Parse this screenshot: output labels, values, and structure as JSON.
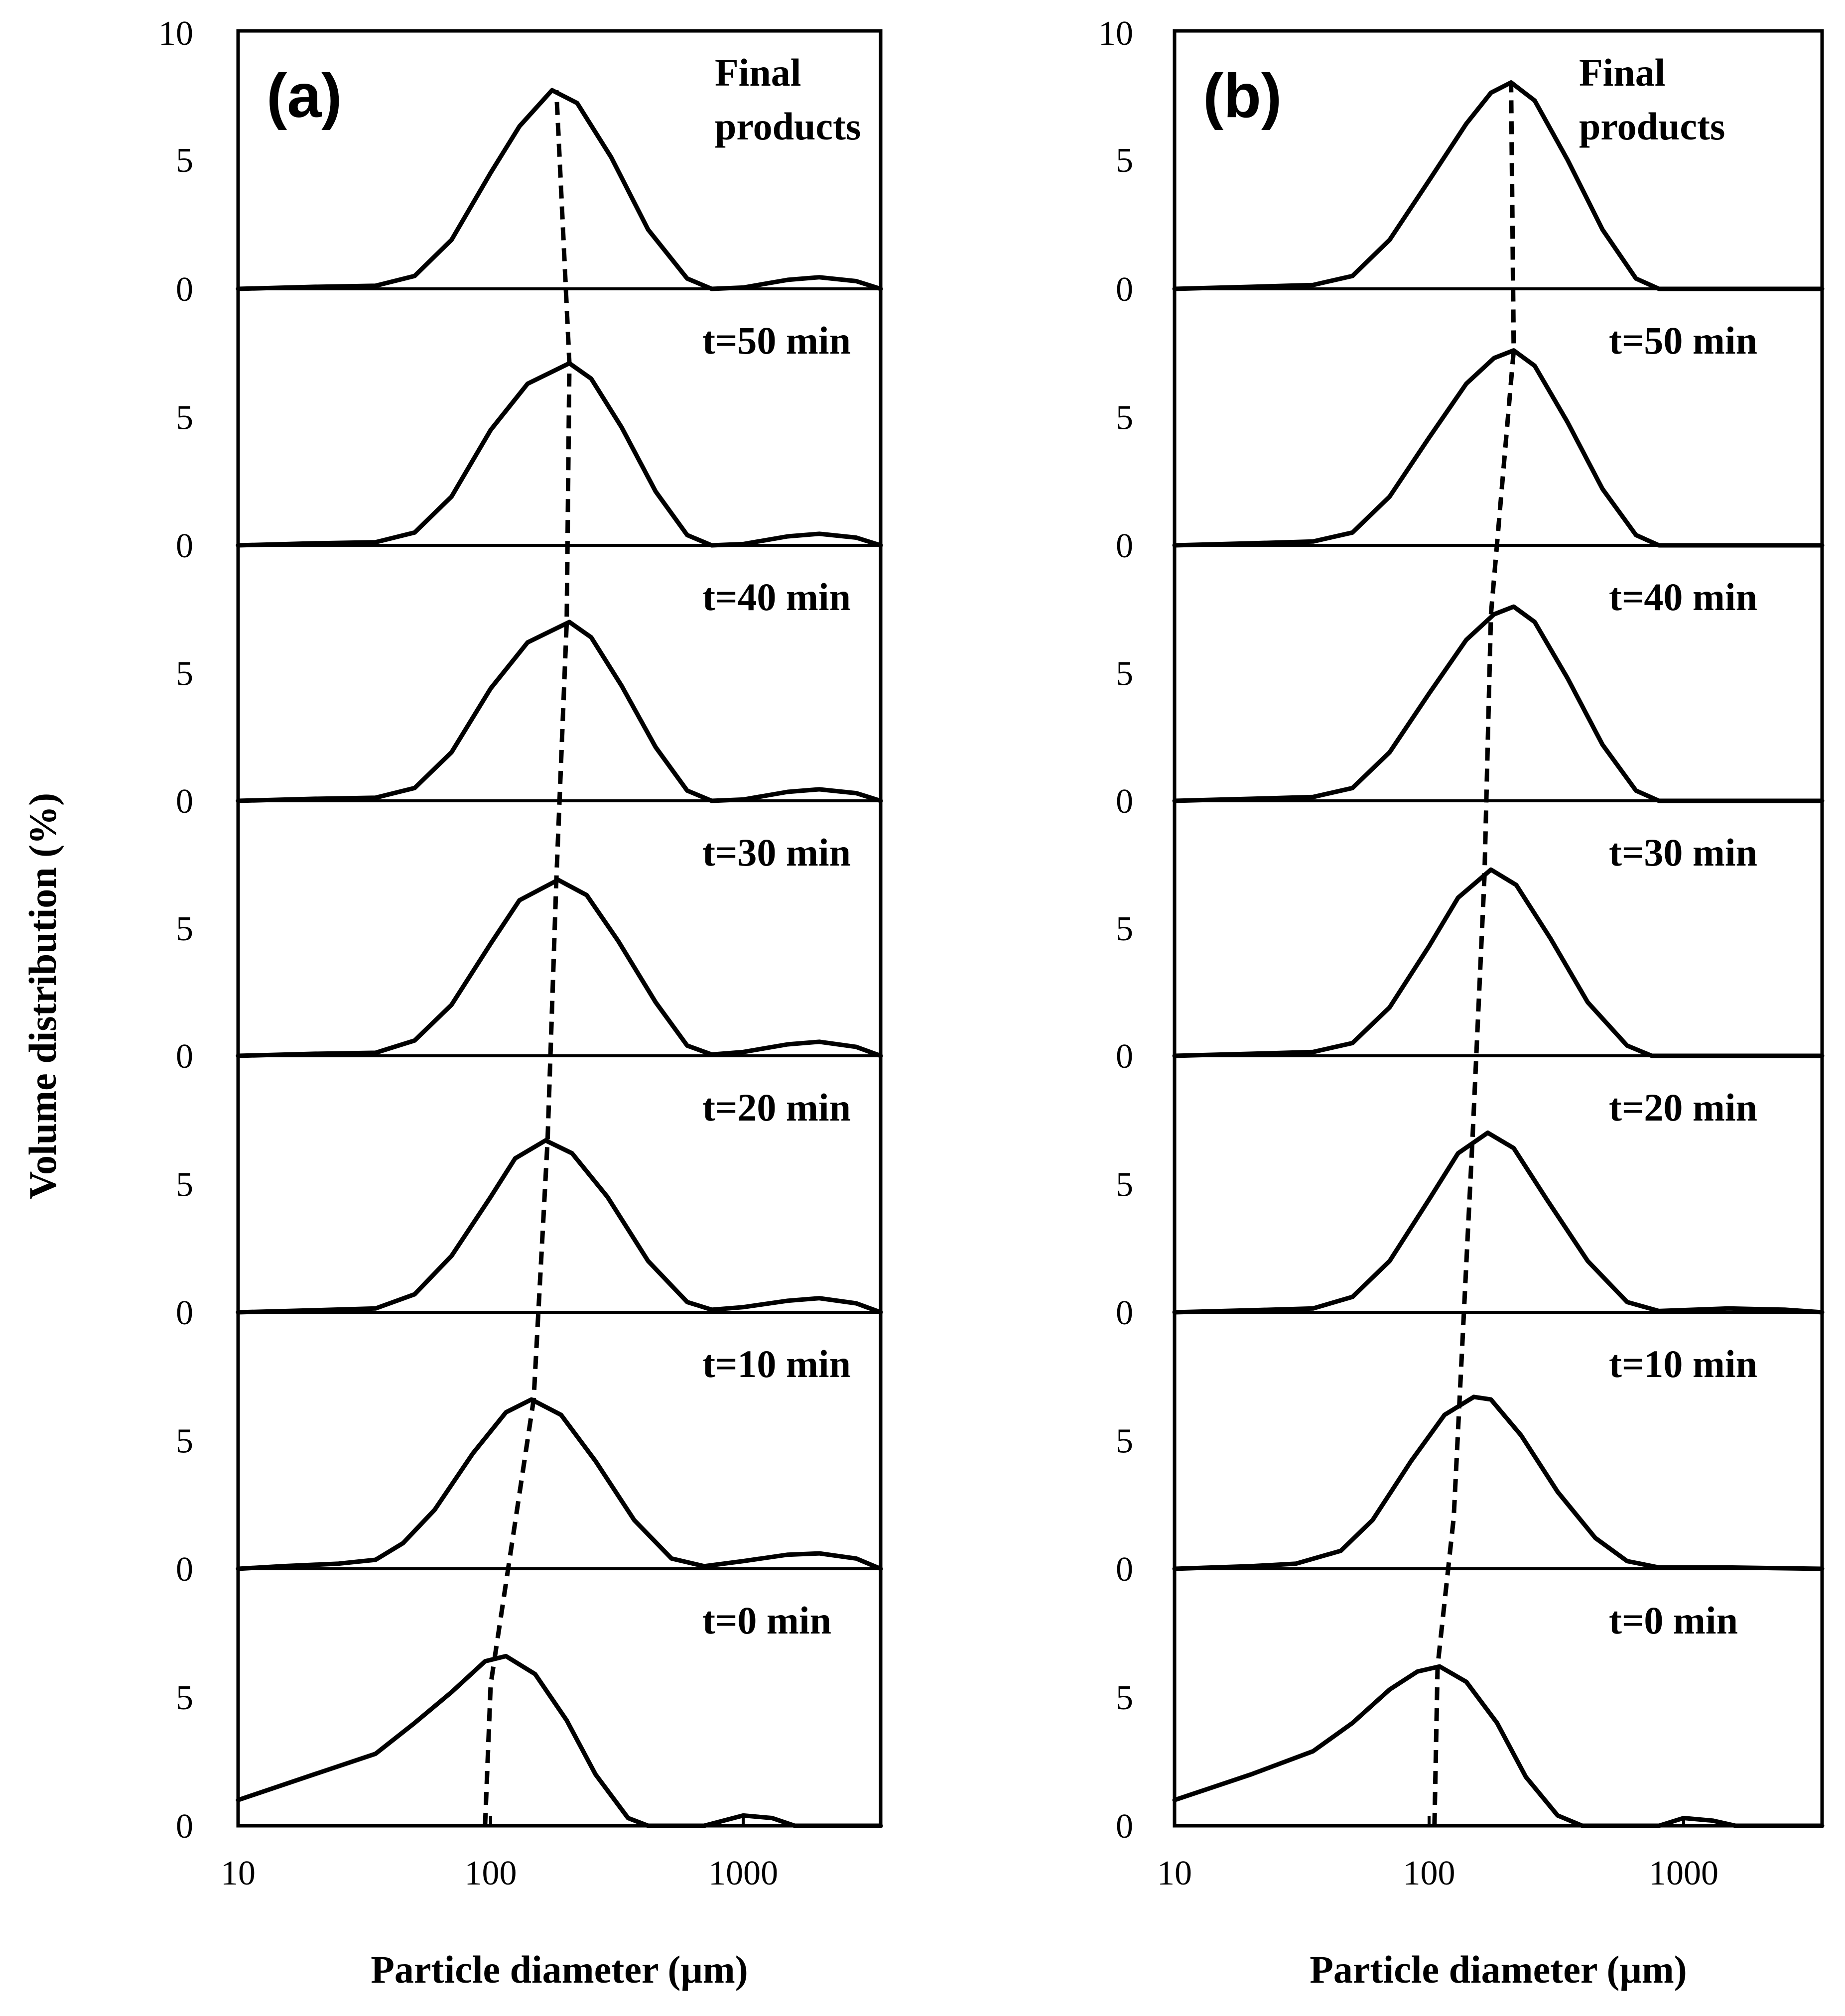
{
  "chart_data": [
    {
      "type": "line",
      "panel_label": "(a)",
      "xlabel": "Particle diameter (μm)",
      "ylabel": "Volume distribution  (%)",
      "x_scale": "log",
      "xlim": [
        10,
        3500
      ],
      "x_ticks": [
        "10",
        "100",
        "1000"
      ],
      "top_y_tick": "10",
      "subplot_y_ticks": [
        "5",
        "0"
      ],
      "subplots": [
        {
          "label": "Final products",
          "ylim": [
            0,
            10
          ],
          "points": [
            [
              10,
              0
            ],
            [
              20,
              0.08
            ],
            [
              35,
              0.12
            ],
            [
              50,
              0.5
            ],
            [
              70,
              1.9
            ],
            [
              100,
              4.5
            ],
            [
              130,
              6.3
            ],
            [
              175,
              7.7
            ],
            [
              220,
              7.2
            ],
            [
              300,
              5.1
            ],
            [
              420,
              2.3
            ],
            [
              600,
              0.4
            ],
            [
              750,
              0
            ],
            [
              1000,
              0.05
            ],
            [
              1500,
              0.35
            ],
            [
              2000,
              0.45
            ],
            [
              2800,
              0.3
            ],
            [
              3500,
              0
            ]
          ]
        },
        {
          "label": "t=50 min",
          "ylim": [
            0,
            10
          ],
          "points": [
            [
              10,
              0
            ],
            [
              20,
              0.08
            ],
            [
              35,
              0.12
            ],
            [
              50,
              0.5
            ],
            [
              70,
              1.9
            ],
            [
              100,
              4.5
            ],
            [
              140,
              6.3
            ],
            [
              205,
              7.1
            ],
            [
              250,
              6.5
            ],
            [
              330,
              4.6
            ],
            [
              450,
              2.1
            ],
            [
              600,
              0.4
            ],
            [
              750,
              0
            ],
            [
              1000,
              0.05
            ],
            [
              1500,
              0.35
            ],
            [
              2000,
              0.45
            ],
            [
              2800,
              0.3
            ],
            [
              3500,
              0
            ]
          ]
        },
        {
          "label": "t=40 min",
          "ylim": [
            0,
            10
          ],
          "points": [
            [
              10,
              0
            ],
            [
              20,
              0.08
            ],
            [
              35,
              0.12
            ],
            [
              50,
              0.5
            ],
            [
              70,
              1.9
            ],
            [
              100,
              4.4
            ],
            [
              140,
              6.2
            ],
            [
              205,
              7.0
            ],
            [
              250,
              6.4
            ],
            [
              330,
              4.5
            ],
            [
              450,
              2.1
            ],
            [
              600,
              0.4
            ],
            [
              750,
              0
            ],
            [
              1000,
              0.05
            ],
            [
              1500,
              0.35
            ],
            [
              2000,
              0.45
            ],
            [
              2800,
              0.3
            ],
            [
              3500,
              0
            ]
          ]
        },
        {
          "label": "t=30 min",
          "ylim": [
            0,
            10
          ],
          "points": [
            [
              10,
              0
            ],
            [
              20,
              0.08
            ],
            [
              35,
              0.12
            ],
            [
              50,
              0.6
            ],
            [
              70,
              2.0
            ],
            [
              100,
              4.4
            ],
            [
              130,
              6.1
            ],
            [
              185,
              6.9
            ],
            [
              240,
              6.3
            ],
            [
              320,
              4.5
            ],
            [
              450,
              2.1
            ],
            [
              600,
              0.4
            ],
            [
              750,
              0.05
            ],
            [
              1000,
              0.15
            ],
            [
              1500,
              0.45
            ],
            [
              2000,
              0.55
            ],
            [
              2800,
              0.35
            ],
            [
              3500,
              0
            ]
          ]
        },
        {
          "label": "t=20 min",
          "ylim": [
            0,
            10
          ],
          "points": [
            [
              10,
              0
            ],
            [
              20,
              0.08
            ],
            [
              35,
              0.15
            ],
            [
              50,
              0.7
            ],
            [
              70,
              2.2
            ],
            [
              100,
              4.5
            ],
            [
              125,
              6.0
            ],
            [
              165,
              6.7
            ],
            [
              210,
              6.2
            ],
            [
              290,
              4.5
            ],
            [
              420,
              2.0
            ],
            [
              600,
              0.4
            ],
            [
              750,
              0.1
            ],
            [
              1000,
              0.2
            ],
            [
              1500,
              0.45
            ],
            [
              2000,
              0.55
            ],
            [
              2800,
              0.35
            ],
            [
              3500,
              0
            ]
          ]
        },
        {
          "label": "t=10 min",
          "ylim": [
            0,
            10
          ],
          "points": [
            [
              10,
              0
            ],
            [
              15,
              0.1
            ],
            [
              25,
              0.2
            ],
            [
              35,
              0.35
            ],
            [
              45,
              1.0
            ],
            [
              60,
              2.3
            ],
            [
              85,
              4.5
            ],
            [
              115,
              6.1
            ],
            [
              145,
              6.6
            ],
            [
              190,
              6.0
            ],
            [
              260,
              4.2
            ],
            [
              370,
              1.9
            ],
            [
              520,
              0.4
            ],
            [
              700,
              0.1
            ],
            [
              1000,
              0.3
            ],
            [
              1500,
              0.55
            ],
            [
              2000,
              0.6
            ],
            [
              2800,
              0.4
            ],
            [
              3500,
              0
            ]
          ]
        },
        {
          "label": "t=0 min",
          "ylim": [
            0,
            10
          ],
          "points": [
            [
              10,
              1.0
            ],
            [
              20,
              2.0
            ],
            [
              35,
              2.8
            ],
            [
              50,
              4.0
            ],
            [
              70,
              5.2
            ],
            [
              95,
              6.4
            ],
            [
              115,
              6.6
            ],
            [
              150,
              5.9
            ],
            [
              200,
              4.1
            ],
            [
              260,
              2.0
            ],
            [
              350,
              0.3
            ],
            [
              420,
              0
            ],
            [
              700,
              0
            ],
            [
              1000,
              0.4
            ],
            [
              1300,
              0.3
            ],
            [
              1600,
              0
            ],
            [
              3500,
              0
            ]
          ]
        }
      ],
      "peak_trend_line": [
        [
          95,
          0
        ],
        [
          100,
          5.5
        ],
        [
          148,
          6.6
        ],
        [
          168,
          6.7
        ],
        [
          182,
          6.9
        ],
        [
          200,
          7.0
        ],
        [
          205,
          7.1
        ],
        [
          182,
          7.7
        ]
      ]
    },
    {
      "type": "line",
      "panel_label": "(b)",
      "xlabel": "Particle diameter (μm)",
      "ylabel": "",
      "x_scale": "log",
      "xlim": [
        10,
        3500
      ],
      "x_ticks": [
        "10",
        "100",
        "1000"
      ],
      "top_y_tick": "10",
      "subplot_y_ticks": [
        "5",
        "0"
      ],
      "subplots": [
        {
          "label": "Final products",
          "ylim": [
            0,
            10
          ],
          "points": [
            [
              10,
              0
            ],
            [
              20,
              0.08
            ],
            [
              35,
              0.15
            ],
            [
              50,
              0.5
            ],
            [
              70,
              1.9
            ],
            [
              100,
              4.2
            ],
            [
              140,
              6.4
            ],
            [
              175,
              7.6
            ],
            [
              210,
              8.0
            ],
            [
              260,
              7.3
            ],
            [
              350,
              5.0
            ],
            [
              480,
              2.3
            ],
            [
              650,
              0.4
            ],
            [
              800,
              0
            ],
            [
              3500,
              0
            ]
          ]
        },
        {
          "label": "t=50 min",
          "ylim": [
            0,
            10
          ],
          "points": [
            [
              10,
              0
            ],
            [
              20,
              0.08
            ],
            [
              35,
              0.15
            ],
            [
              50,
              0.5
            ],
            [
              70,
              1.9
            ],
            [
              100,
              4.2
            ],
            [
              140,
              6.3
            ],
            [
              180,
              7.3
            ],
            [
              215,
              7.6
            ],
            [
              260,
              7.0
            ],
            [
              350,
              4.8
            ],
            [
              480,
              2.2
            ],
            [
              650,
              0.4
            ],
            [
              800,
              0
            ],
            [
              3500,
              0
            ]
          ]
        },
        {
          "label": "t=40 min",
          "ylim": [
            0,
            10
          ],
          "points": [
            [
              10,
              0
            ],
            [
              20,
              0.08
            ],
            [
              35,
              0.15
            ],
            [
              50,
              0.5
            ],
            [
              70,
              1.9
            ],
            [
              100,
              4.2
            ],
            [
              140,
              6.3
            ],
            [
              180,
              7.3
            ],
            [
              215,
              7.6
            ],
            [
              260,
              7.0
            ],
            [
              350,
              4.8
            ],
            [
              480,
              2.2
            ],
            [
              650,
              0.4
            ],
            [
              800,
              0
            ],
            [
              3500,
              0
            ]
          ]
        },
        {
          "label": "t=30 min",
          "ylim": [
            0,
            10
          ],
          "points": [
            [
              10,
              0
            ],
            [
              20,
              0.08
            ],
            [
              35,
              0.15
            ],
            [
              50,
              0.5
            ],
            [
              70,
              1.9
            ],
            [
              100,
              4.3
            ],
            [
              130,
              6.2
            ],
            [
              175,
              7.3
            ],
            [
              220,
              6.7
            ],
            [
              300,
              4.6
            ],
            [
              420,
              2.1
            ],
            [
              600,
              0.4
            ],
            [
              750,
              0
            ],
            [
              3500,
              0
            ]
          ]
        },
        {
          "label": "t=20 min",
          "ylim": [
            0,
            10
          ],
          "points": [
            [
              10,
              0
            ],
            [
              20,
              0.08
            ],
            [
              35,
              0.15
            ],
            [
              50,
              0.6
            ],
            [
              70,
              2.0
            ],
            [
              100,
              4.4
            ],
            [
              130,
              6.2
            ],
            [
              170,
              7.0
            ],
            [
              215,
              6.4
            ],
            [
              290,
              4.4
            ],
            [
              420,
              2.0
            ],
            [
              600,
              0.4
            ],
            [
              800,
              0.05
            ],
            [
              1500,
              0.15
            ],
            [
              2500,
              0.1
            ],
            [
              3500,
              0
            ]
          ]
        },
        {
          "label": "t=10 min",
          "ylim": [
            0,
            10
          ],
          "points": [
            [
              10,
              0
            ],
            [
              20,
              0.1
            ],
            [
              30,
              0.2
            ],
            [
              45,
              0.7
            ],
            [
              60,
              1.9
            ],
            [
              85,
              4.2
            ],
            [
              115,
              6.0
            ],
            [
              150,
              6.7
            ],
            [
              175,
              6.6
            ],
            [
              230,
              5.2
            ],
            [
              320,
              3.0
            ],
            [
              450,
              1.2
            ],
            [
              600,
              0.3
            ],
            [
              800,
              0.05
            ],
            [
              1500,
              0.05
            ],
            [
              3500,
              0
            ]
          ]
        },
        {
          "label": "t=0 min",
          "ylim": [
            0,
            10
          ],
          "points": [
            [
              10,
              1.0
            ],
            [
              20,
              2.0
            ],
            [
              35,
              2.9
            ],
            [
              50,
              4.0
            ],
            [
              70,
              5.3
            ],
            [
              90,
              6.0
            ],
            [
              110,
              6.2
            ],
            [
              140,
              5.6
            ],
            [
              185,
              4.0
            ],
            [
              240,
              1.9
            ],
            [
              320,
              0.4
            ],
            [
              400,
              0
            ],
            [
              800,
              0
            ],
            [
              1000,
              0.3
            ],
            [
              1300,
              0.2
            ],
            [
              1600,
              0
            ],
            [
              3500,
              0
            ]
          ]
        }
      ],
      "peak_trend_line": [
        [
          105,
          0
        ],
        [
          108,
          6.2
        ],
        [
          125,
          2.0
        ],
        [
          148,
          6.7
        ],
        [
          165,
          7.0
        ],
        [
          175,
          7.3
        ],
        [
          215,
          7.6
        ],
        [
          210,
          8.0
        ]
      ]
    }
  ]
}
